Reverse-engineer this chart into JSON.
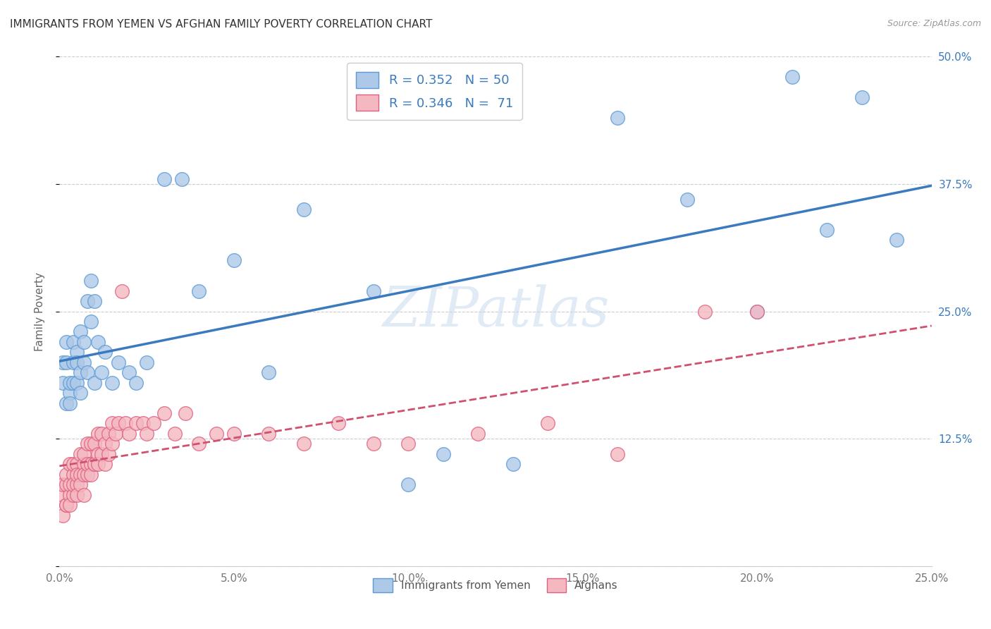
{
  "title": "IMMIGRANTS FROM YEMEN VS AFGHAN FAMILY POVERTY CORRELATION CHART",
  "source": "Source: ZipAtlas.com",
  "ylabel": "Family Poverty",
  "ytick_labels": [
    "",
    "12.5%",
    "25.0%",
    "37.5%",
    "50.0%"
  ],
  "ytick_values": [
    0.0,
    0.125,
    0.25,
    0.375,
    0.5
  ],
  "xlim": [
    0.0,
    0.25
  ],
  "ylim": [
    0.0,
    0.5
  ],
  "watermark": "ZIPatlas",
  "series1_color": "#aec8e8",
  "series2_color": "#f4b8c1",
  "series1_edge": "#5b9bd5",
  "series2_edge": "#e06080",
  "line1_color": "#3a7abf",
  "line2_color": "#d05070",
  "series1_name": "Immigrants from Yemen",
  "series2_name": "Afghans",
  "background_color": "#ffffff",
  "grid_color": "#cccccc",
  "yemen_x": [
    0.001,
    0.001,
    0.002,
    0.002,
    0.002,
    0.003,
    0.003,
    0.003,
    0.004,
    0.004,
    0.004,
    0.005,
    0.005,
    0.005,
    0.006,
    0.006,
    0.006,
    0.007,
    0.007,
    0.008,
    0.008,
    0.009,
    0.009,
    0.01,
    0.01,
    0.011,
    0.012,
    0.013,
    0.015,
    0.017,
    0.02,
    0.022,
    0.025,
    0.03,
    0.035,
    0.04,
    0.05,
    0.06,
    0.07,
    0.09,
    0.1,
    0.11,
    0.13,
    0.16,
    0.18,
    0.2,
    0.21,
    0.22,
    0.23,
    0.24
  ],
  "yemen_y": [
    0.18,
    0.2,
    0.16,
    0.2,
    0.22,
    0.17,
    0.18,
    0.16,
    0.2,
    0.18,
    0.22,
    0.21,
    0.18,
    0.2,
    0.17,
    0.19,
    0.23,
    0.2,
    0.22,
    0.19,
    0.26,
    0.28,
    0.24,
    0.26,
    0.18,
    0.22,
    0.19,
    0.21,
    0.18,
    0.2,
    0.19,
    0.18,
    0.2,
    0.38,
    0.38,
    0.27,
    0.3,
    0.19,
    0.35,
    0.27,
    0.08,
    0.11,
    0.1,
    0.44,
    0.36,
    0.25,
    0.48,
    0.33,
    0.46,
    0.32
  ],
  "afghan_x": [
    0.001,
    0.001,
    0.001,
    0.002,
    0.002,
    0.002,
    0.002,
    0.003,
    0.003,
    0.003,
    0.003,
    0.004,
    0.004,
    0.004,
    0.004,
    0.005,
    0.005,
    0.005,
    0.005,
    0.006,
    0.006,
    0.006,
    0.007,
    0.007,
    0.007,
    0.007,
    0.008,
    0.008,
    0.008,
    0.009,
    0.009,
    0.009,
    0.01,
    0.01,
    0.01,
    0.011,
    0.011,
    0.011,
    0.012,
    0.012,
    0.013,
    0.013,
    0.014,
    0.014,
    0.015,
    0.015,
    0.016,
    0.017,
    0.018,
    0.019,
    0.02,
    0.022,
    0.024,
    0.025,
    0.027,
    0.03,
    0.033,
    0.036,
    0.04,
    0.045,
    0.05,
    0.06,
    0.07,
    0.08,
    0.09,
    0.1,
    0.12,
    0.14,
    0.16,
    0.185,
    0.2
  ],
  "afghan_y": [
    0.07,
    0.08,
    0.05,
    0.06,
    0.08,
    0.09,
    0.06,
    0.07,
    0.1,
    0.08,
    0.06,
    0.09,
    0.07,
    0.1,
    0.08,
    0.08,
    0.1,
    0.07,
    0.09,
    0.09,
    0.11,
    0.08,
    0.1,
    0.07,
    0.11,
    0.09,
    0.09,
    0.12,
    0.1,
    0.1,
    0.12,
    0.09,
    0.1,
    0.12,
    0.1,
    0.11,
    0.13,
    0.1,
    0.11,
    0.13,
    0.12,
    0.1,
    0.13,
    0.11,
    0.12,
    0.14,
    0.13,
    0.14,
    0.27,
    0.14,
    0.13,
    0.14,
    0.14,
    0.13,
    0.14,
    0.15,
    0.13,
    0.15,
    0.12,
    0.13,
    0.13,
    0.13,
    0.12,
    0.14,
    0.12,
    0.12,
    0.13,
    0.14,
    0.11,
    0.25,
    0.25
  ]
}
